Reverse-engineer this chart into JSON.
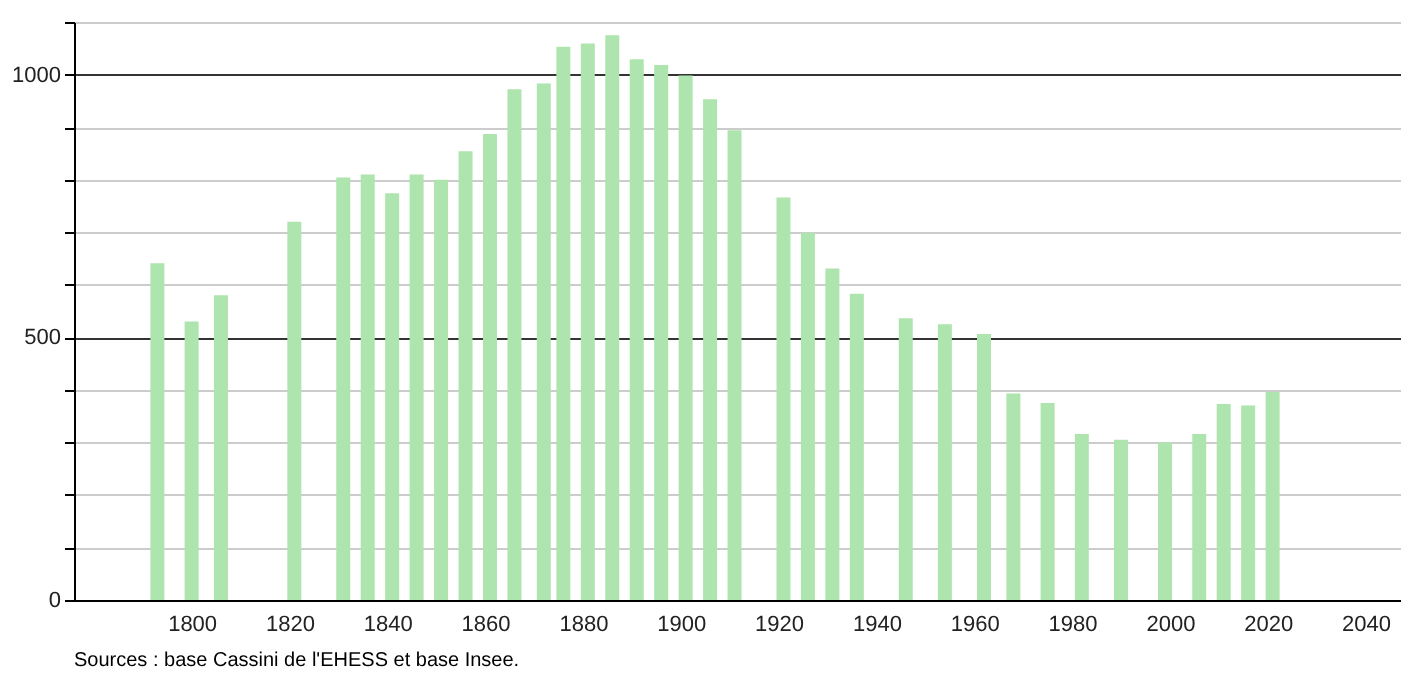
{
  "chart_data": {
    "type": "bar",
    "color": "#aee5ae",
    "x": [
      1793,
      1800,
      1806,
      1821,
      1831,
      1836,
      1841,
      1846,
      1851,
      1856,
      1861,
      1866,
      1872,
      1876,
      1881,
      1886,
      1891,
      1896,
      1901,
      1906,
      1911,
      1921,
      1926,
      1931,
      1936,
      1946,
      1954,
      1962,
      1968,
      1975,
      1982,
      1990,
      1999,
      2006,
      2011,
      2016,
      2021
    ],
    "values": [
      641,
      530,
      580,
      720,
      804,
      810,
      774,
      810,
      800,
      854,
      887,
      972,
      983,
      1053,
      1059,
      1075,
      1029,
      1018,
      998,
      953,
      894,
      766,
      699,
      631,
      583,
      536,
      525,
      506,
      393,
      375,
      316,
      305,
      300,
      316,
      373,
      370,
      396
    ],
    "xlim": [
      1778,
      2045
    ],
    "xticks": [
      1800,
      1820,
      1840,
      1860,
      1880,
      1900,
      1920,
      1940,
      1960,
      1980,
      2000,
      2020,
      2040
    ],
    "ylim": [
      0,
      1100
    ],
    "yticks": [
      0,
      {
        "value": 100,
        "label": null
      },
      {
        "value": 200,
        "label": null
      },
      {
        "value": 300,
        "label": null
      },
      {
        "value": 400,
        "label": null
      },
      500,
      {
        "value": 600,
        "label": null
      },
      {
        "value": 700,
        "label": null
      },
      {
        "value": 800,
        "label": null
      },
      {
        "value": 900,
        "label": null
      },
      1000,
      {
        "value": 1100,
        "label": null
      }
    ],
    "grid": "y",
    "annotations": [
      "Sources : base Cassini de l'EHESS et base Insee."
    ]
  }
}
